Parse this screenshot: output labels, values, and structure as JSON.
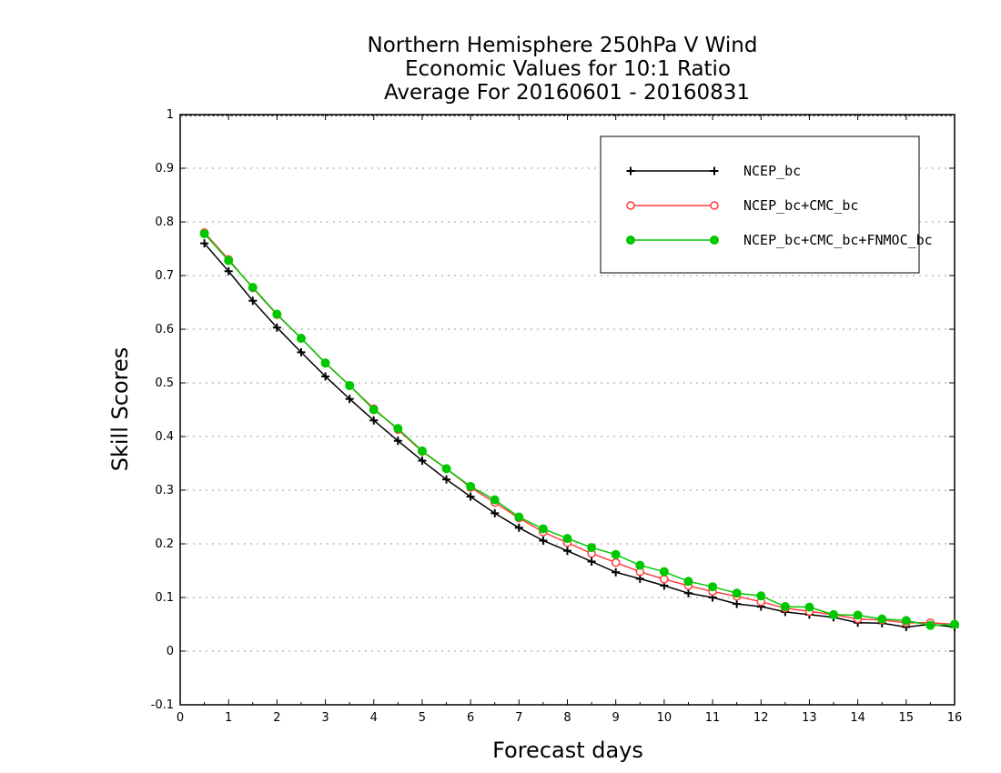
{
  "chart_data": {
    "type": "line",
    "title": [
      "Northern Hemisphere 250hPa V Wind",
      "Economic Values for 10:1 Ratio",
      "Average For 20160601 - 20160831"
    ],
    "xlabel": "Forecast days",
    "ylabel": "Skill Scores",
    "xlim": [
      0,
      16
    ],
    "ylim": [
      -0.1,
      1
    ],
    "xticks": [
      0,
      1,
      2,
      3,
      4,
      5,
      6,
      7,
      8,
      9,
      10,
      11,
      12,
      13,
      14,
      15,
      16
    ],
    "yticks": [
      -0.1,
      0,
      0.1,
      0.2,
      0.3,
      0.4,
      0.5,
      0.6,
      0.7,
      0.8,
      0.9,
      1
    ],
    "ytick_labels": [
      "-0.1",
      "0",
      "0.1",
      "0.2",
      "0.3",
      "0.4",
      "0.5",
      "0.6",
      "0.7",
      "0.8",
      "0.9",
      "1"
    ],
    "grid": "horizontal dotted",
    "legend_position": "top-right",
    "x": [
      0.5,
      1,
      1.5,
      2,
      2.5,
      3,
      3.5,
      4,
      4.5,
      5,
      5.5,
      6,
      6.5,
      7,
      7.5,
      8,
      8.5,
      9,
      9.5,
      10,
      10.5,
      11,
      11.5,
      12,
      12.5,
      13,
      13.5,
      14,
      14.5,
      15,
      15.5,
      16
    ],
    "series": [
      {
        "name": "NCEP_bc",
        "color": "#000000",
        "marker": "plus",
        "values": [
          0.76,
          0.708,
          0.653,
          0.603,
          0.557,
          0.512,
          0.47,
          0.43,
          0.392,
          0.355,
          0.32,
          0.288,
          0.257,
          0.23,
          0.206,
          0.187,
          0.167,
          0.147,
          0.135,
          0.122,
          0.108,
          0.1,
          0.088,
          0.083,
          0.073,
          0.068,
          0.063,
          0.053,
          0.052,
          0.045,
          0.05,
          0.045
        ]
      },
      {
        "name": "NCEP_bc+CMC_bc",
        "color": "#ff3b3b",
        "marker": "open-circle",
        "values": [
          0.78,
          0.73,
          0.677,
          0.627,
          0.583,
          0.537,
          0.495,
          0.452,
          0.413,
          0.372,
          0.34,
          0.305,
          0.277,
          0.248,
          0.222,
          0.202,
          0.182,
          0.165,
          0.148,
          0.134,
          0.122,
          0.111,
          0.102,
          0.092,
          0.08,
          0.074,
          0.068,
          0.06,
          0.058,
          0.053,
          0.053,
          0.05
        ]
      },
      {
        "name": "NCEP_bc+CMC_bc+FNMOC_bc",
        "color": "#00c800",
        "marker": "filled-circle",
        "values": [
          0.778,
          0.728,
          0.678,
          0.628,
          0.583,
          0.537,
          0.495,
          0.45,
          0.415,
          0.373,
          0.34,
          0.307,
          0.282,
          0.25,
          0.228,
          0.21,
          0.193,
          0.18,
          0.16,
          0.148,
          0.13,
          0.12,
          0.108,
          0.103,
          0.083,
          0.082,
          0.068,
          0.067,
          0.06,
          0.057,
          0.048,
          0.05
        ]
      }
    ]
  }
}
